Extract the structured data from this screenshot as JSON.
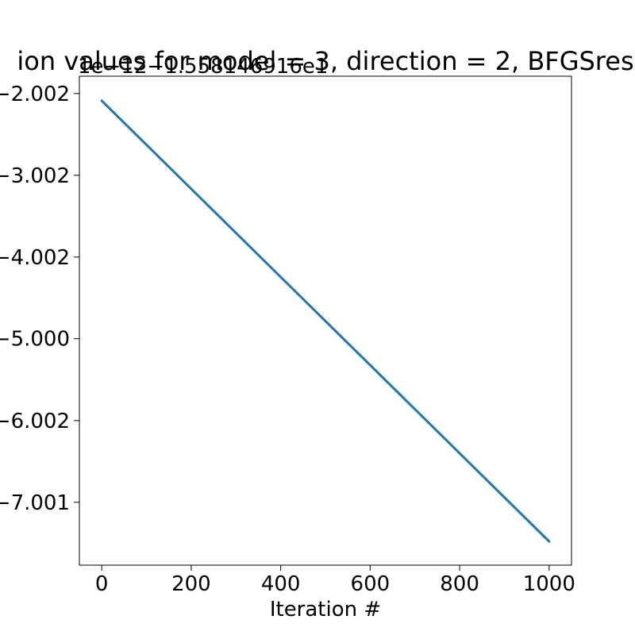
{
  "chart_data": {
    "type": "line",
    "title": "ion values for model = 3, direction = 2, BFGSres",
    "offset_label": "1e−12−1.558146916e1",
    "xlabel": "Iteration #",
    "ylabel": "",
    "xlim": [
      -50,
      1050
    ],
    "ylim": [
      -7.77,
      -1.79
    ],
    "x_ticks": [
      0,
      200,
      400,
      600,
      800,
      1000
    ],
    "x_tick_labels": [
      "0",
      "200",
      "400",
      "600",
      "800",
      "1000"
    ],
    "y_ticks": [
      -2.002,
      -3.002,
      -4.002,
      -5.0,
      -6.002,
      -7.001
    ],
    "y_tick_labels": [
      "−2.002",
      "−3.002",
      "−4.002",
      "−5.000",
      "−6.002",
      "−7.001"
    ],
    "grid": false,
    "series": [
      {
        "color": "#1f77b4",
        "x": [
          0,
          1000
        ],
        "y": [
          -2.09,
          -7.48
        ]
      }
    ]
  }
}
